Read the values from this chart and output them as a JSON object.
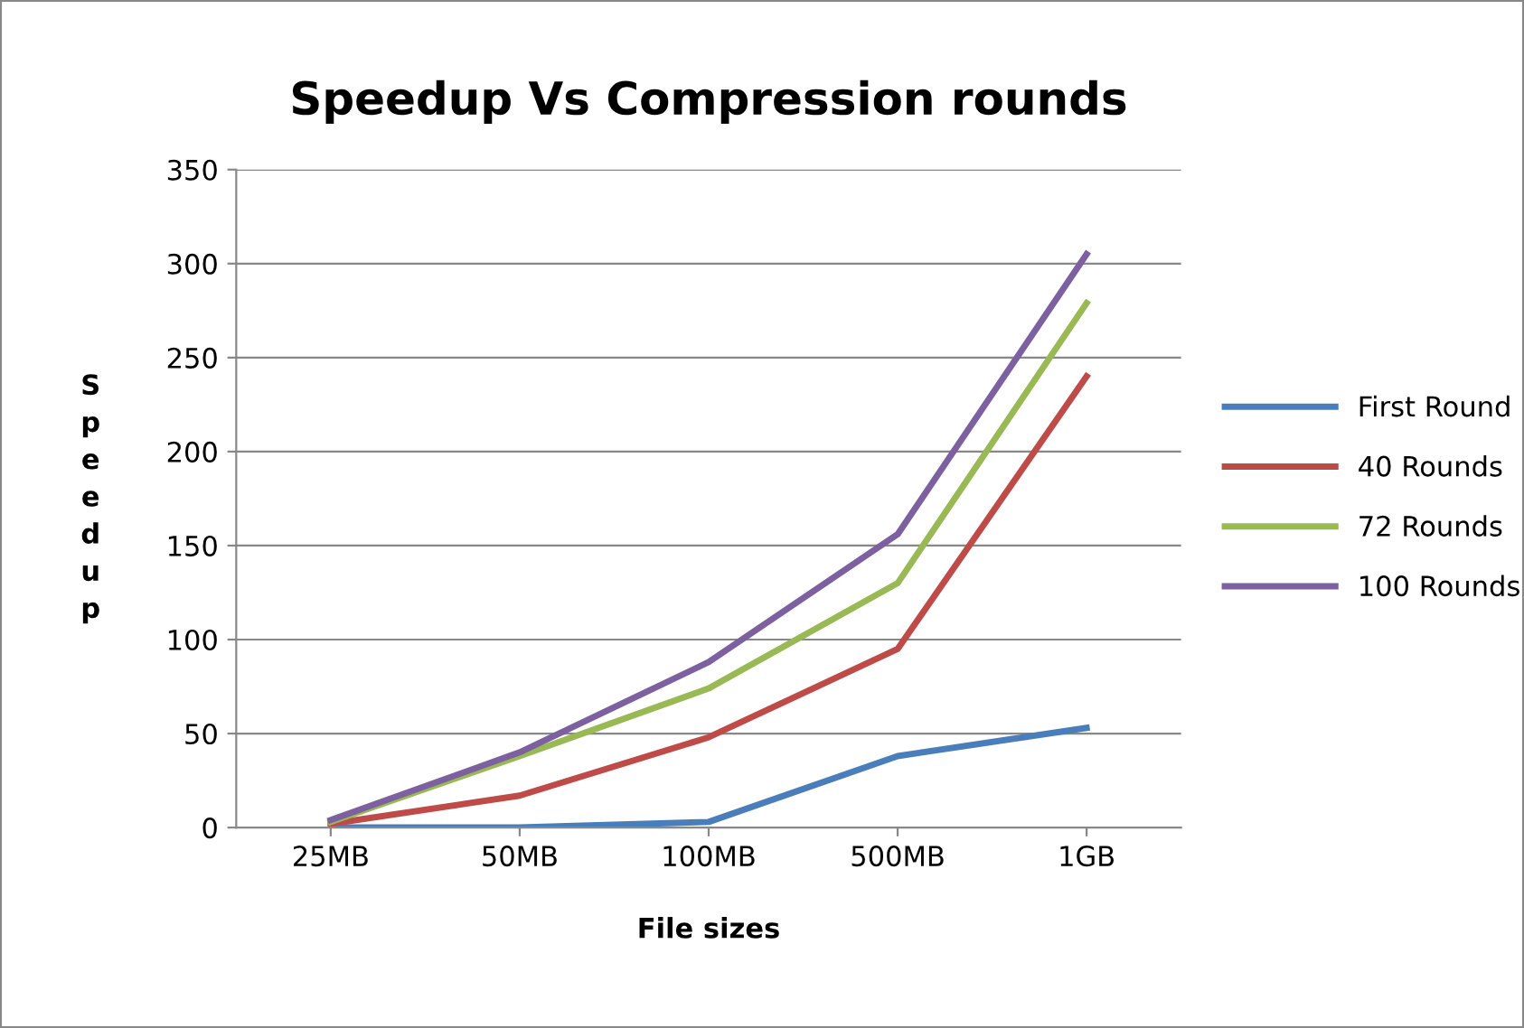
{
  "chart_data": {
    "type": "line",
    "title": "Speedup Vs Compression rounds",
    "xlabel": "File sizes",
    "ylabel": "Speedup",
    "categories": [
      "25MB",
      "50MB",
      "100MB",
      "500MB",
      "1GB"
    ],
    "series": [
      {
        "name": "First Round",
        "color": "#4a7ebb",
        "values": [
          0,
          0,
          3,
          38,
          53
        ]
      },
      {
        "name": "40 Rounds",
        "color": "#be4b48",
        "values": [
          2,
          17,
          48,
          95,
          240
        ]
      },
      {
        "name": "72 Rounds",
        "color": "#98b954",
        "values": [
          3,
          38,
          74,
          130,
          279
        ]
      },
      {
        "name": "100 Rounds",
        "color": "#7d60a0",
        "values": [
          4,
          40,
          88,
          156,
          305
        ]
      }
    ],
    "ylim": [
      0,
      350
    ],
    "yticks": [
      0,
      50,
      100,
      150,
      200,
      250,
      300,
      350
    ],
    "grid": "y",
    "legend": "right",
    "marker": "none",
    "line_style": "solid"
  }
}
